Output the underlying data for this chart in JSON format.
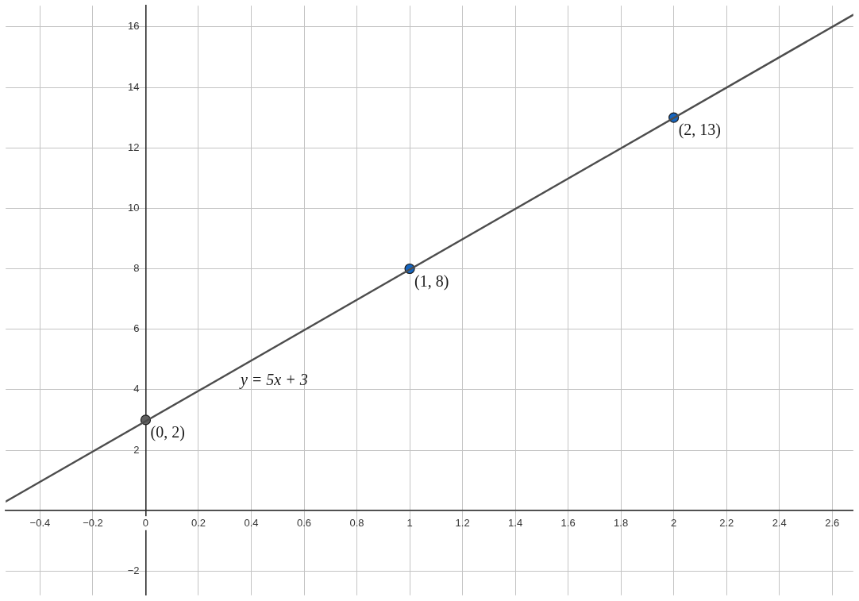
{
  "chart_data": {
    "type": "line",
    "xlim": [
      -0.53,
      2.68
    ],
    "ylim": [
      -2.8,
      16.7
    ],
    "xticks": [
      {
        "value": -0.4,
        "label": "−0.4"
      },
      {
        "value": -0.2,
        "label": "−0.2"
      },
      0,
      0.2,
      0.4,
      0.6,
      0.8,
      1,
      1.2,
      1.4,
      1.6,
      1.8,
      2,
      2.2,
      2.4,
      2.6
    ],
    "yticks": [
      {
        "value": -2,
        "label": "−2"
      },
      {
        "value": 0,
        "label": null
      },
      2,
      4,
      6,
      8,
      10,
      12,
      14,
      16
    ],
    "grid": true,
    "series": [
      {
        "name": "y = 5x + 3",
        "type": "line",
        "color": "#4d4d4d",
        "marker": "none",
        "x": [
          -0.53,
          2.68
        ],
        "values": [
          0.3,
          16.4
        ]
      },
      {
        "type": "scatter",
        "marker": "circle",
        "colors": [
          "#616161",
          "#1565c0",
          "#1565c0"
        ],
        "x": [
          0,
          1,
          2
        ],
        "values": [
          3,
          8,
          13
        ],
        "value_labels": [
          "(0, 2)",
          "(1, 8)",
          "(2, 13)"
        ]
      }
    ]
  }
}
